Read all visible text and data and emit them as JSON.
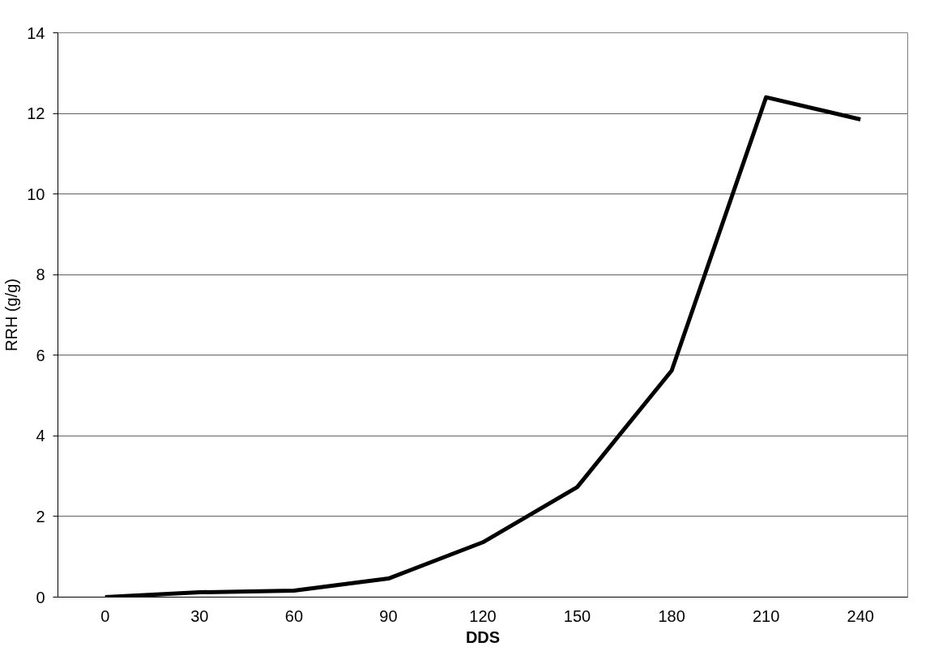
{
  "chart_data": {
    "type": "line",
    "xlabel": "DDS",
    "ylabel": "RRH (g/g)",
    "categories": [
      "0",
      "30",
      "60",
      "90",
      "120",
      "150",
      "180",
      "210",
      "240"
    ],
    "series": [
      {
        "color": "#000000",
        "values": [
          0,
          0.12,
          0.16,
          0.46,
          1.36,
          2.73,
          5.62,
          12.4,
          11.85
        ]
      }
    ],
    "ylim": [
      0,
      14
    ],
    "yticks": [
      0,
      2,
      4,
      6,
      8,
      10,
      12,
      14
    ],
    "grid": "y",
    "marker": "none",
    "line_style": "solid"
  }
}
